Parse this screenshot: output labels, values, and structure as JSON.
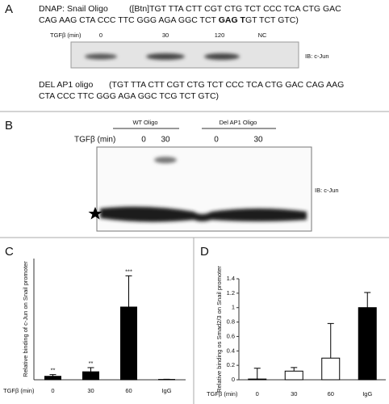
{
  "panel_a": {
    "label": "A",
    "dnap_label": "DNAP: Snail Oligo",
    "dnap_seq_1": "([Btn]TGT TTA CTT CGT CTG TCT CCC TCA CTG GAC",
    "dnap_seq_2a": "CAG AAG CTA CCC TTC GGG AGA GGC TCT ",
    "dnap_seq_bold": "GAG T",
    "dnap_seq_2b": "GT TCT GTC)",
    "tgf_label": "TGFβ (min)",
    "lanes": [
      "0",
      "30",
      "120",
      "NC"
    ],
    "blot_label": "IB: c-Jun",
    "del_label": "DEL AP1 oligo",
    "del_seq_1": "(TGT TTA CTT CGT CTG TCT CCC TCA CTG GAC CAG AAG",
    "del_seq_2": "CTA CCC TTC GGG AGA GGC TCG TCT GTC)"
  },
  "panel_b": {
    "label": "B",
    "groups": [
      "WT Oligo",
      "Del AP1 Oligo"
    ],
    "tgf_label": "TGFβ (min)",
    "lanes": [
      "0",
      "30",
      "0",
      "30"
    ],
    "blot_label": "IB: c-Jun"
  },
  "chart_data": [
    {
      "type": "bar",
      "panel": "C",
      "y_label": "Relative binding of c-Jun on Snail promoter",
      "x_label": "TGFβ (min)",
      "categories": [
        "0",
        "30",
        "60",
        "IgG"
      ],
      "values": [
        1,
        2.3,
        21,
        0.1
      ],
      "errors": [
        0.5,
        1.2,
        9,
        0.05
      ],
      "annotations": [
        "**",
        "**",
        "***",
        null
      ],
      "colors": [
        "#000000",
        "#000000",
        "#000000",
        "#000000"
      ],
      "ylim": [
        0,
        35
      ]
    },
    {
      "type": "bar",
      "panel": "D",
      "y_label": "Relative binding os Smad2/3 on Snail promoter",
      "x_label": "TGFβ (min)",
      "categories": [
        "0",
        "30",
        "60",
        "IgG"
      ],
      "values": [
        0.01,
        0.12,
        0.3,
        1.0
      ],
      "errors": [
        0.15,
        0.05,
        0.48,
        0.21
      ],
      "colors": [
        "#ffffff",
        "#ffffff",
        "#ffffff",
        "#000000"
      ],
      "ylim": [
        0,
        1.4
      ],
      "yticks": [
        0,
        0.2,
        0.4,
        0.6,
        0.8,
        1,
        1.2,
        1.4
      ]
    }
  ]
}
